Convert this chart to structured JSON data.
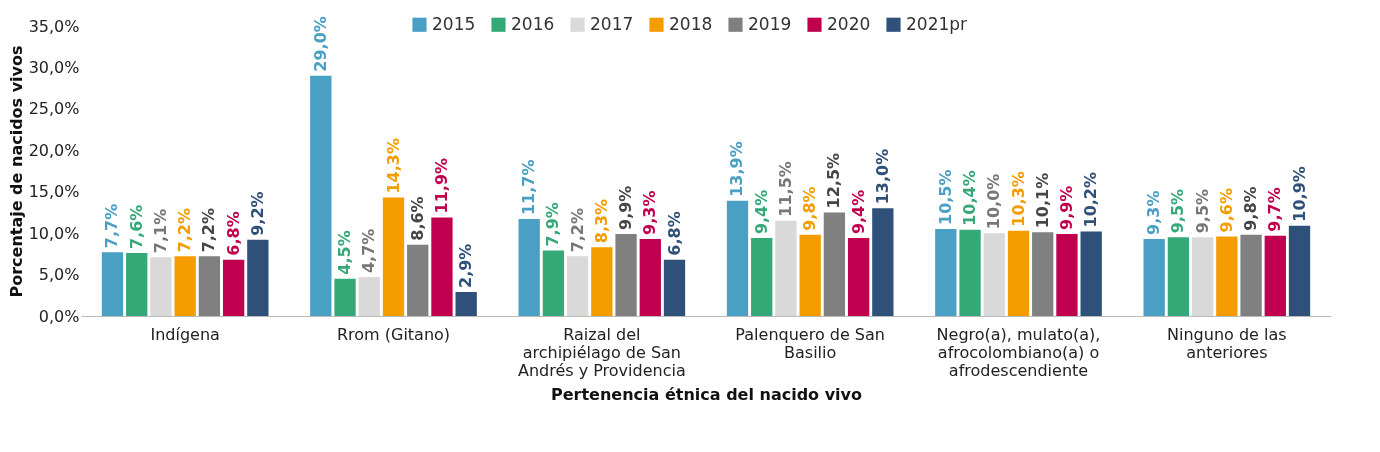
{
  "chart_data": {
    "type": "bar",
    "xlabel": "Pertenencia étnica del nacido vivo",
    "ylabel": "Porcentaje de nacidos vivos",
    "categories": [
      "Indígena",
      "Rrom (Gitano)",
      "Raizal del archipiélago de San Andrés y Providencia",
      "Palenquero de San Basilio",
      "Negro(a), mulato(a), afrocolombiano(a) o afrodescendiente",
      "Ninguno de las anteriores"
    ],
    "series": [
      {
        "name": "2015",
        "color": "#4a9fc4",
        "values": [
          7.7,
          29.0,
          11.7,
          13.9,
          10.5,
          9.3
        ],
        "value_labels": [
          "7,7%",
          "29,0%",
          "11,7%",
          "13,9%",
          "10,5%",
          "9,3%"
        ]
      },
      {
        "name": "2016",
        "color": "#35a877",
        "values": [
          7.6,
          4.5,
          7.9,
          9.4,
          10.4,
          9.5
        ],
        "value_labels": [
          "7,6%",
          "4,5%",
          "7,9%",
          "9,4%",
          "10,4%",
          "9,5%"
        ]
      },
      {
        "name": "2017",
        "color": "#d9d9d9",
        "values": [
          7.1,
          4.7,
          7.2,
          11.5,
          10.0,
          9.5
        ],
        "value_labels": [
          "7,1%",
          "4,7%",
          "7,2%",
          "11,5%",
          "10,0%",
          "9,5%"
        ]
      },
      {
        "name": "2018",
        "color": "#f59c00",
        "values": [
          7.2,
          14.3,
          8.3,
          9.8,
          10.3,
          9.6
        ],
        "value_labels": [
          "7,2%",
          "14,3%",
          "8,3%",
          "9,8%",
          "10,3%",
          "9,6%"
        ]
      },
      {
        "name": "2019",
        "color": "#808080",
        "values": [
          7.2,
          8.6,
          9.9,
          12.5,
          10.1,
          9.8
        ],
        "value_labels": [
          "7,2%",
          "8,6%",
          "9,9%",
          "12,5%",
          "10,1%",
          "9,8%"
        ]
      },
      {
        "name": "2020",
        "color": "#c0004f",
        "values": [
          6.8,
          11.9,
          9.3,
          9.4,
          9.9,
          9.7
        ],
        "value_labels": [
          "6,8%",
          "11,9%",
          "9,3%",
          "9,4%",
          "9,9%",
          "9,7%"
        ]
      },
      {
        "name": "2021pr",
        "color": "#2f5078",
        "values": [
          9.2,
          2.9,
          6.8,
          13.0,
          10.2,
          10.9
        ],
        "value_labels": [
          "9,2%",
          "2,9%",
          "6,8%",
          "13,0%",
          "10,2%",
          "10,9%"
        ]
      }
    ],
    "ylim": [
      0,
      35
    ],
    "yticks": [
      {
        "value": 0,
        "label": "0,0%"
      },
      {
        "value": 5,
        "label": "5,0%"
      },
      {
        "value": 10,
        "label": "10,0%"
      },
      {
        "value": 15,
        "label": "15,0%"
      },
      {
        "value": 20,
        "label": "20,0%"
      },
      {
        "value": 25,
        "label": "25,0%"
      },
      {
        "value": 30,
        "label": "30,0%"
      },
      {
        "value": 35,
        "label": "35,0%"
      }
    ],
    "grid": false,
    "legend": "top"
  }
}
